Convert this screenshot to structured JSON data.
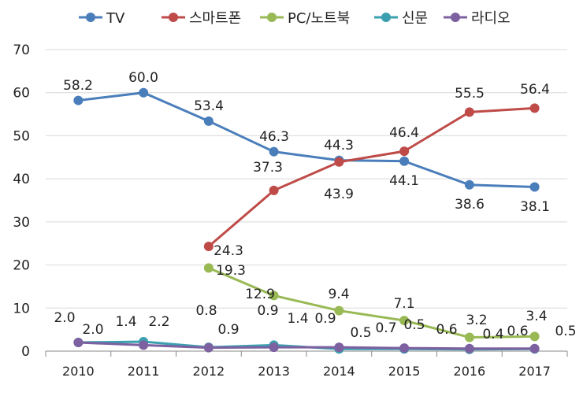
{
  "chart_data": {
    "type": "line",
    "title": "",
    "xlabel": "",
    "ylabel": "",
    "ylim": [
      0,
      70
    ],
    "yticks": [
      "0",
      "10",
      "20",
      "30",
      "40",
      "50",
      "60",
      "70"
    ],
    "categories": [
      "2010",
      "2011",
      "2012",
      "2013",
      "2014",
      "2015",
      "2016",
      "2017"
    ],
    "legend_position": "top",
    "grid": true,
    "series": [
      {
        "name": "TV",
        "color": "#4a7ebb",
        "values": [
          58.2,
          60.0,
          53.4,
          46.3,
          44.3,
          44.1,
          38.6,
          38.1
        ],
        "labels": [
          "58.2",
          "60.0",
          "53.4",
          "46.3",
          "44.3",
          "44.1",
          "38.6",
          "38.1"
        ]
      },
      {
        "name": "스마트폰",
        "color": "#be4b48",
        "values": [
          null,
          null,
          24.3,
          37.3,
          43.9,
          46.4,
          55.5,
          56.4
        ],
        "labels": [
          null,
          null,
          "24.3",
          "37.3",
          "43.9",
          "46.4",
          "55.5",
          "56.4"
        ]
      },
      {
        "name": "PC/노트북",
        "color": "#98b954",
        "values": [
          null,
          null,
          19.3,
          12.9,
          9.4,
          7.1,
          3.2,
          3.4
        ],
        "labels": [
          null,
          null,
          "19.3",
          "12.9",
          "9.4",
          "7.1",
          "3.2",
          "3.4"
        ]
      },
      {
        "name": "신문",
        "color": "#3b9fb0",
        "values": [
          2.0,
          2.2,
          0.9,
          1.4,
          0.5,
          0.5,
          0.4,
          0.5
        ],
        "labels": [
          "2.0",
          "2.2",
          "0.9",
          "1.4",
          "0.5",
          "0.5",
          "0.4",
          "0.5"
        ]
      },
      {
        "name": "라디오",
        "color": "#7d60a0",
        "values": [
          2.0,
          1.4,
          0.8,
          0.9,
          0.9,
          0.7,
          0.6,
          0.6
        ],
        "labels": [
          "2.0",
          "1.4",
          "0.8",
          "0.9",
          "0.9",
          "0.7",
          "0.6",
          "0.6"
        ]
      }
    ]
  }
}
